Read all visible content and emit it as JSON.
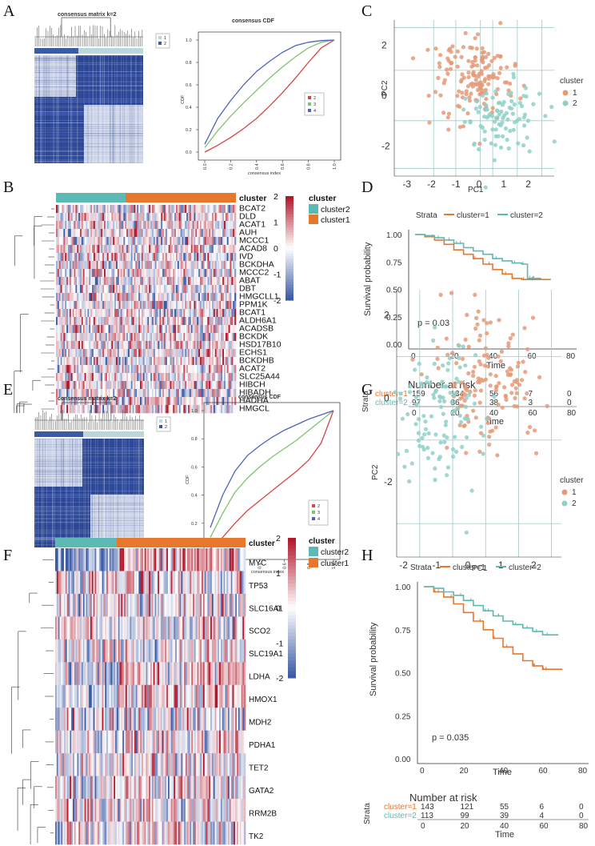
{
  "colors": {
    "cluster1": "#E8772E",
    "cluster2": "#5DB9B3",
    "heat_blue": "#3B5BA6",
    "heat_red": "#B2182B",
    "matrix_blue": "#2F4A9A",
    "cdf_red": "#D64545",
    "cdf_green": "#7DC46B",
    "cdf_blue": "#4F63B8",
    "pca_orange": "#E49A78",
    "pca_teal": "#8FD0C6"
  },
  "panel_labels": {
    "A": "A",
    "B": "B",
    "C": "C",
    "D": "D",
    "E": "E",
    "F": "F",
    "G": "G",
    "H": "H"
  },
  "panel_A": {
    "matrix_title": "consensus matrix k=2",
    "legend": [
      "1",
      "2"
    ],
    "cdf": {
      "title": "consensus CDF",
      "xlabel": "consensus index",
      "ylabel": "CDF",
      "xticks": [
        "0.0",
        "0.2",
        "0.4",
        "0.6",
        "0.8",
        "1.0"
      ],
      "yticks": [
        "0.0",
        "0.2",
        "0.4",
        "0.6",
        "0.8",
        "1.0"
      ],
      "legend": [
        "2",
        "3",
        "4"
      ]
    }
  },
  "panel_B": {
    "legend_title_left": "cluster",
    "legend_title_right": "cluster",
    "legend_items": [
      "cluster2",
      "cluster1"
    ],
    "colorbar_ticks": [
      "2",
      "1",
      "0",
      "-1",
      "-2"
    ],
    "genes": [
      "BCAT2",
      "DLD",
      "ACAT1",
      "AUH",
      "MCCC1",
      "ACAD8",
      "IVD",
      "BCKDHA",
      "MCCC2",
      "ABAT",
      "DBT",
      "HMGCLL1",
      "PPM1K",
      "BCAT1",
      "ALDH6A1",
      "ACADSB",
      "BCKDK",
      "HSD17B10",
      "ECHS1",
      "BCKDHB",
      "ACAT2",
      "SLC25A44",
      "HIBCH",
      "HIBADH",
      "HADHA",
      "HMGCL"
    ]
  },
  "panel_C": {
    "xlabel": "PC1",
    "ylabel": "PC2",
    "legend_title": "cluster",
    "legend": [
      "1",
      "2"
    ],
    "xticks": [
      "-3",
      "-2",
      "-1",
      "0",
      "1",
      "2"
    ],
    "yticks": [
      "2",
      "0",
      "-2"
    ]
  },
  "panel_D": {
    "strata_label": "Strata",
    "legend": [
      "cluster=1",
      "cluster=2"
    ],
    "ylabel": "Survival probability",
    "xlabel": "Time",
    "yticks": [
      "1.00",
      "0.75",
      "0.50",
      "0.25",
      "0.00"
    ],
    "xticks": [
      "0",
      "20",
      "40",
      "60",
      "80"
    ],
    "pvalue": "p = 0.03",
    "risk_title": "Number at risk",
    "risk_ylabel": "Strata",
    "risk_rows": [
      {
        "name": "cluster=1",
        "values": [
          "159",
          "134",
          "56",
          "7",
          "0"
        ]
      },
      {
        "name": "cluster=2",
        "values": [
          "97",
          "86",
          "38",
          "3",
          "0"
        ]
      }
    ],
    "risk_xticks": [
      "0",
      "20",
      "40",
      "60",
      "80"
    ],
    "risk_xlabel": "Time"
  },
  "panel_E": {
    "matrix_title": "consensus matrix k=2",
    "legend": [
      "1",
      "2"
    ],
    "cdf": {
      "title": "consensus CDF",
      "xlabel": "consensus index",
      "ylabel": "CDF",
      "xticks": [
        "0.0",
        "0.2",
        "0.4",
        "0.6",
        "0.8",
        "1.0"
      ],
      "yticks": [
        "0.0",
        "0.2",
        "0.4",
        "0.6",
        "0.8",
        "1.0"
      ],
      "legend": [
        "2",
        "3",
        "4"
      ]
    }
  },
  "panel_F": {
    "legend_title_left": "cluster",
    "legend_title_right": "cluster",
    "legend_items": [
      "cluster2",
      "cluster1"
    ],
    "colorbar_ticks": [
      "2",
      "1",
      "0",
      "-1",
      "-2"
    ],
    "genes": [
      "MYC",
      "TP53",
      "SLC16A1",
      "SCO2",
      "SLC19A1",
      "LDHA",
      "HMOX1",
      "MDH2",
      "PDHA1",
      "TET2",
      "GATA2",
      "RRM2B",
      "TK2"
    ]
  },
  "panel_G": {
    "xlabel": "PC1",
    "ylabel": "PC2",
    "legend_title": "cluster",
    "legend": [
      "1",
      "2"
    ],
    "xticks": [
      "-2",
      "-1",
      "0",
      "1",
      "2"
    ],
    "yticks": [
      "2",
      "0",
      "-2"
    ]
  },
  "panel_H": {
    "strata_label": "Strata",
    "legend": [
      "cluster=1",
      "cluster=2"
    ],
    "ylabel": "Survival probability",
    "xlabel": "Time",
    "yticks": [
      "1.00",
      "0.75",
      "0.50",
      "0.25",
      "0.00"
    ],
    "xticks": [
      "0",
      "20",
      "40",
      "60",
      "80"
    ],
    "pvalue": "p = 0.035",
    "risk_title": "Number at risk",
    "risk_ylabel": "Strata",
    "risk_rows": [
      {
        "name": "cluster=1",
        "values": [
          "143",
          "121",
          "55",
          "6",
          "0"
        ]
      },
      {
        "name": "cluster=2",
        "values": [
          "113",
          "99",
          "39",
          "4",
          "0"
        ]
      }
    ],
    "risk_xticks": [
      "0",
      "20",
      "40",
      "60",
      "80"
    ],
    "risk_xlabel": "Time"
  },
  "chart_data": [
    {
      "panel": "A",
      "type": "line",
      "title": "consensus CDF",
      "xlabel": "consensus index",
      "ylabel": "CDF",
      "xlim": [
        0,
        1
      ],
      "ylim": [
        0,
        1
      ],
      "series": [
        {
          "name": "2",
          "x": [
            0,
            0.1,
            0.2,
            0.3,
            0.4,
            0.5,
            0.6,
            0.7,
            0.8,
            0.9,
            1.0
          ],
          "values": [
            0.0,
            0.06,
            0.13,
            0.21,
            0.3,
            0.41,
            0.53,
            0.66,
            0.8,
            0.93,
            1.0
          ]
        },
        {
          "name": "3",
          "x": [
            0,
            0.1,
            0.2,
            0.3,
            0.4,
            0.5,
            0.6,
            0.7,
            0.8,
            0.9,
            1.0
          ],
          "values": [
            0.04,
            0.19,
            0.32,
            0.44,
            0.55,
            0.66,
            0.76,
            0.85,
            0.93,
            0.98,
            1.0
          ]
        },
        {
          "name": "4",
          "x": [
            0,
            0.1,
            0.2,
            0.3,
            0.4,
            0.5,
            0.6,
            0.7,
            0.8,
            0.9,
            1.0
          ],
          "values": [
            0.07,
            0.3,
            0.46,
            0.6,
            0.72,
            0.81,
            0.89,
            0.95,
            0.98,
            0.995,
            1.0
          ]
        }
      ]
    },
    {
      "panel": "E",
      "type": "line",
      "title": "consensus CDF",
      "xlabel": "consensus index",
      "ylabel": "CDF",
      "xlim": [
        0,
        1
      ],
      "ylim": [
        0,
        1
      ],
      "series": [
        {
          "name": "2",
          "x": [
            0,
            0.1,
            0.2,
            0.3,
            0.4,
            0.5,
            0.6,
            0.7,
            0.8,
            0.9,
            1.0
          ],
          "values": [
            0.02,
            0.1,
            0.2,
            0.29,
            0.36,
            0.43,
            0.5,
            0.57,
            0.65,
            0.77,
            1.0
          ]
        },
        {
          "name": "3",
          "x": [
            0,
            0.1,
            0.2,
            0.3,
            0.4,
            0.5,
            0.6,
            0.7,
            0.8,
            0.9,
            1.0
          ],
          "values": [
            0.1,
            0.27,
            0.42,
            0.52,
            0.6,
            0.67,
            0.73,
            0.79,
            0.86,
            0.93,
            1.0
          ]
        },
        {
          "name": "4",
          "x": [
            0,
            0.1,
            0.2,
            0.3,
            0.4,
            0.5,
            0.6,
            0.7,
            0.8,
            0.9,
            1.0
          ],
          "values": [
            0.17,
            0.4,
            0.57,
            0.68,
            0.75,
            0.81,
            0.86,
            0.9,
            0.94,
            0.97,
            1.0
          ]
        }
      ]
    },
    {
      "panel": "D",
      "type": "line",
      "title": "Kaplan-Meier",
      "xlabel": "Time",
      "ylabel": "Survival probability",
      "xlim": [
        0,
        80
      ],
      "ylim": [
        0,
        1
      ],
      "pvalue": "p = 0.03",
      "series": [
        {
          "name": "cluster=1",
          "x": [
            0,
            5,
            10,
            15,
            20,
            25,
            30,
            35,
            40,
            45,
            50,
            55,
            60,
            65,
            70
          ],
          "values": [
            1.0,
            0.98,
            0.95,
            0.91,
            0.86,
            0.82,
            0.78,
            0.73,
            0.68,
            0.64,
            0.6,
            0.59,
            0.59,
            0.59,
            0.59
          ]
        },
        {
          "name": "cluster=2",
          "x": [
            0,
            5,
            10,
            15,
            20,
            25,
            30,
            35,
            40,
            45,
            50,
            55,
            58,
            60,
            65
          ],
          "values": [
            1.0,
            0.99,
            0.97,
            0.95,
            0.92,
            0.88,
            0.85,
            0.82,
            0.78,
            0.76,
            0.74,
            0.73,
            0.6,
            0.6,
            0.6
          ]
        }
      ]
    },
    {
      "panel": "H",
      "type": "line",
      "title": "Kaplan-Meier",
      "xlabel": "Time",
      "ylabel": "Survival probability",
      "xlim": [
        0,
        80
      ],
      "ylim": [
        0,
        1
      ],
      "pvalue": "p = 0.035",
      "series": [
        {
          "name": "cluster=1",
          "x": [
            0,
            5,
            10,
            15,
            20,
            25,
            30,
            35,
            40,
            45,
            50,
            55,
            60,
            65,
            70
          ],
          "values": [
            1.0,
            0.97,
            0.94,
            0.9,
            0.85,
            0.8,
            0.75,
            0.7,
            0.65,
            0.61,
            0.57,
            0.54,
            0.52,
            0.52,
            0.52
          ]
        },
        {
          "name": "cluster=2",
          "x": [
            0,
            5,
            10,
            15,
            20,
            25,
            30,
            35,
            40,
            45,
            50,
            55,
            60,
            65,
            68
          ],
          "values": [
            1.0,
            0.99,
            0.97,
            0.95,
            0.92,
            0.89,
            0.86,
            0.83,
            0.8,
            0.78,
            0.76,
            0.74,
            0.72,
            0.72,
            0.72
          ]
        }
      ]
    },
    {
      "panel": "C",
      "type": "scatter",
      "xlabel": "PC1",
      "ylabel": "PC2",
      "xlim": [
        -3.5,
        3.0
      ],
      "ylim": [
        -3.2,
        3.0
      ],
      "series": [
        "1",
        "2"
      ]
    },
    {
      "panel": "G",
      "type": "scatter",
      "xlabel": "PC1",
      "ylabel": "PC2",
      "xlim": [
        -2.2,
        2.8
      ],
      "ylim": [
        -3.8,
        2.6
      ],
      "series": [
        "1",
        "2"
      ]
    }
  ]
}
